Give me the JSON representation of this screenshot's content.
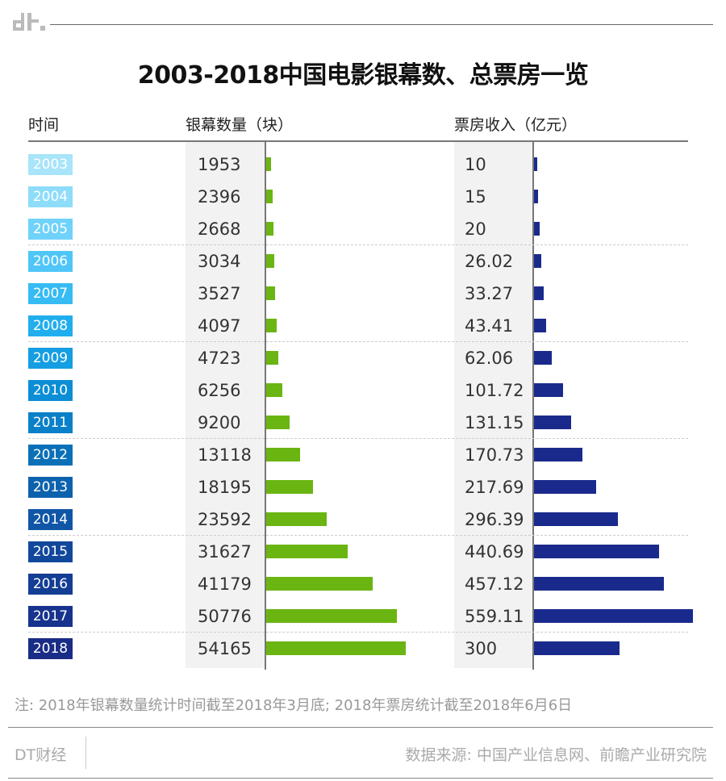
{
  "header": {
    "title": "2003-2018中国电影银幕数、总票房一览",
    "logo_text": "dt."
  },
  "columns": {
    "year": "时间",
    "screens": "银幕数量（块）",
    "box_office": "票房收入（亿元）"
  },
  "chart_data": {
    "type": "table",
    "title": "2003-2018中国电影银幕数、总票房一览",
    "categories": [
      "2003",
      "2004",
      "2005",
      "2006",
      "2007",
      "2008",
      "2009",
      "2010",
      "2011",
      "2012",
      "2013",
      "2014",
      "2015",
      "2016",
      "2017",
      "2018"
    ],
    "series": [
      {
        "name": "银幕数量（块）",
        "values": [
          "1953",
          "2396",
          "2668",
          "3034",
          "3527",
          "4097",
          "4723",
          "6256",
          "9200",
          "13118",
          "18195",
          "23592",
          "31627",
          "41179",
          "50776",
          "54165"
        ],
        "color": "#6ab512",
        "max": 54165
      },
      {
        "name": "票房收入（亿元）",
        "values": [
          "10",
          "15",
          "20",
          "26.02",
          "33.27",
          "43.41",
          "62.06",
          "101.72",
          "131.15",
          "170.73",
          "217.69",
          "296.39",
          "440.69",
          "457.12",
          "559.11",
          "300"
        ],
        "color": "#1a2a8c",
        "max": 559.11
      }
    ],
    "year_colors": [
      "#a8e4fa",
      "#8ddcfa",
      "#6fd2fa",
      "#4fc6f7",
      "#36bbf3",
      "#22aeee",
      "#159ee2",
      "#0c8ed6",
      "#0a80c8",
      "#0b70b8",
      "#0d62ad",
      "#0f56a6",
      "#12489c",
      "#143d94",
      "#17338d",
      "#1a2d86"
    ]
  },
  "footer": {
    "note": "注: 2018年银幕数量统计时间截至2018年3月底; 2018年票房统计截至2018年6月6日",
    "brand": "DT财经",
    "source": "数据来源: 中国产业信息网、前瞻产业研究院"
  }
}
